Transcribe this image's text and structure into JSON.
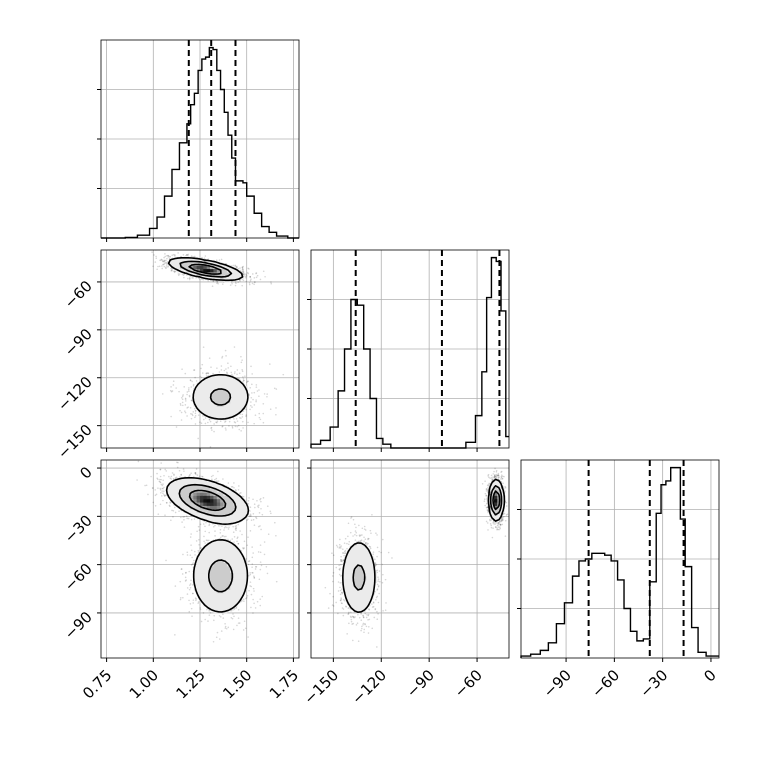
{
  "chart_data": {
    "type": "corner",
    "title": "",
    "grid": true,
    "colors": {
      "line": "#000000",
      "grid": "#b0b0b0",
      "cmap_dark": "#000000",
      "scatter": "#000000"
    },
    "variables": [
      {
        "index": 0,
        "range": [
          0.72,
          1.78
        ],
        "ticks": [
          0.75,
          1.0,
          1.25,
          1.5,
          1.75
        ],
        "tick_labels": [
          "0.75",
          "1.00",
          "1.25",
          "1.50",
          "1.75"
        ]
      },
      {
        "index": 1,
        "range": [
          -164,
          -40
        ],
        "ticks": [
          -150,
          -120,
          -90,
          -60
        ],
        "tick_labels": [
          "−150",
          "−120",
          "−90",
          "−60"
        ]
      },
      {
        "index": 2,
        "range": [
          -118,
          5
        ],
        "ticks": [
          -90,
          -60,
          -30,
          0
        ],
        "tick_labels": [
          "−90",
          "−60",
          "−30",
          "0"
        ]
      }
    ],
    "histograms": [
      {
        "var": 0,
        "bin_edges": [
          0.72,
          0.785,
          0.85,
          0.915,
          0.98,
          1.02,
          1.06,
          1.1,
          1.14,
          1.18,
          1.2,
          1.22,
          1.24,
          1.26,
          1.28,
          1.3,
          1.32,
          1.34,
          1.36,
          1.38,
          1.4,
          1.42,
          1.44,
          1.46,
          1.48,
          1.5,
          1.54,
          1.58,
          1.62,
          1.66,
          1.72,
          1.78
        ],
        "counts": [
          0,
          0,
          0.003,
          0.015,
          0.05,
          0.11,
          0.22,
          0.36,
          0.5,
          0.6,
          0.7,
          0.76,
          0.88,
          0.94,
          0.95,
          1.0,
          0.99,
          0.88,
          0.78,
          0.66,
          0.54,
          0.42,
          0.3,
          0.3,
          0.29,
          0.22,
          0.13,
          0.06,
          0.03,
          0.01,
          0
        ],
        "quantiles": [
          1.19,
          1.31,
          1.44
        ]
      },
      {
        "var": 1,
        "bin_edges": [
          -164,
          -158,
          -152,
          -147,
          -143,
          -139,
          -135,
          -131,
          -127,
          -123,
          -119,
          -114,
          -109,
          -103,
          -97,
          -91,
          -85,
          -79,
          -73,
          -67,
          -61,
          -57,
          -54,
          -51,
          -48,
          -45,
          -42,
          -40
        ],
        "counts": [
          0.02,
          0.04,
          0.11,
          0.3,
          0.52,
          0.78,
          0.75,
          0.52,
          0.26,
          0.05,
          0.02,
          0,
          0,
          0,
          0,
          0,
          0,
          0,
          0,
          0.03,
          0.17,
          0.4,
          0.79,
          1.0,
          0.98,
          0.72,
          0.06
        ],
        "quantiles": [
          -136,
          -82,
          -46
        ]
      },
      {
        "var": 2,
        "bin_edges": [
          -118,
          -112,
          -106,
          -101,
          -96,
          -91,
          -86,
          -82,
          -78,
          -74,
          -70,
          -66,
          -62,
          -58,
          -54,
          -50,
          -46,
          -42,
          -38,
          -34,
          -31,
          -28,
          -25,
          -22,
          -19,
          -16,
          -12,
          -8,
          -3,
          5
        ],
        "counts": [
          0.01,
          0.02,
          0.04,
          0.08,
          0.18,
          0.29,
          0.43,
          0.51,
          0.52,
          0.55,
          0.55,
          0.54,
          0.51,
          0.41,
          0.26,
          0.14,
          0.09,
          0.1,
          0.4,
          0.76,
          0.91,
          0.93,
          1.0,
          1.0,
          0.73,
          0.48,
          0.16,
          0.03,
          0.01
        ],
        "quantiles": [
          -76,
          -38,
          -17
        ]
      }
    ],
    "panels_2d": [
      {
        "x": 0,
        "y": 1,
        "components": [
          {
            "mean": [
              1.28,
              -52
            ],
            "sd": [
              0.1,
              3.5
            ],
            "corr": -0.6,
            "weight": 1.0
          },
          {
            "mean": [
              1.36,
              -132
            ],
            "sd": [
              0.095,
              9.0
            ],
            "corr": 0.0,
            "weight": 0.45
          }
        ],
        "contour_levels": [
          0.14,
          0.39,
          0.68
        ]
      },
      {
        "x": 0,
        "y": 2,
        "components": [
          {
            "mean": [
              1.29,
              -20
            ],
            "sd": [
              0.11,
              7.0
            ],
            "corr": -0.45,
            "weight": 1.0
          },
          {
            "mean": [
              1.36,
              -67
            ],
            "sd": [
              0.09,
              14.0
            ],
            "corr": 0.0,
            "weight": 0.5
          }
        ],
        "contour_levels": [
          0.14,
          0.39,
          0.68
        ]
      },
      {
        "x": 1,
        "y": 2,
        "components": [
          {
            "mean": [
              -48,
              -20
            ],
            "sd": [
              2.4,
              6.5
            ],
            "corr": 0.0,
            "weight": 1.0
          },
          {
            "mean": [
              -134,
              -68
            ],
            "sd": [
              6.5,
              14.0
            ],
            "corr": 0.0,
            "weight": 0.45
          }
        ],
        "contour_levels": [
          0.14,
          0.39,
          0.68
        ]
      }
    ]
  }
}
